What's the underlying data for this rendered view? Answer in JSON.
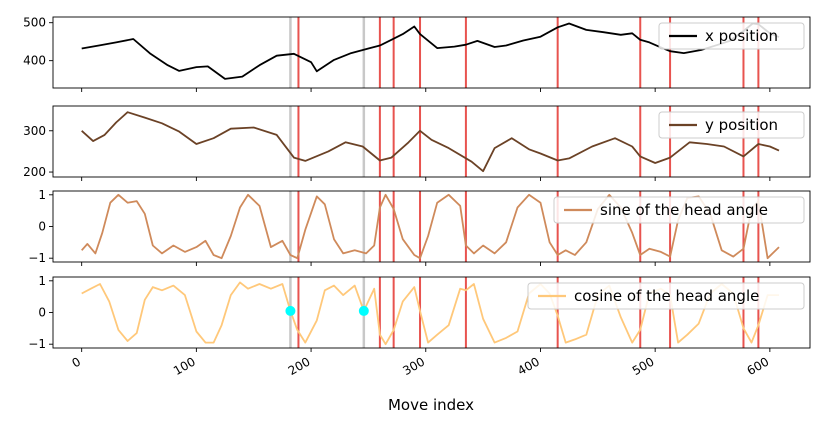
{
  "chart_data": {
    "type": "line",
    "xlabel": "Move index",
    "xlim": [
      -25,
      635
    ],
    "x_ticks": [
      0,
      100,
      200,
      300,
      400,
      500,
      600
    ],
    "x_tick_labels": [
      "0",
      "100",
      "200",
      "300",
      "400",
      "500",
      "600"
    ],
    "red_vlines": [
      189,
      260,
      272,
      295,
      335,
      415,
      487,
      513,
      577,
      590
    ],
    "gray_vlines": [
      182,
      246
    ],
    "markers": [
      {
        "panel": 3,
        "x": 182,
        "y": 0.05,
        "color": "#00ffff"
      },
      {
        "panel": 3,
        "x": 246,
        "y": 0.05,
        "color": "#00ffff"
      }
    ],
    "panels": [
      {
        "series_name": "x position",
        "color": "#000000",
        "ylim": [
          328,
          515
        ],
        "yticks": [
          400,
          500
        ],
        "ytick_labels": [
          "400",
          "500"
        ],
        "legend_loc": "upper right",
        "x": [
          0,
          15,
          30,
          45,
          60,
          75,
          85,
          100,
          110,
          125,
          140,
          155,
          170,
          185,
          200,
          205,
          220,
          235,
          250,
          260,
          270,
          280,
          290,
          295,
          310,
          325,
          335,
          345,
          360,
          370,
          385,
          400,
          415,
          425,
          440,
          455,
          470,
          480,
          487,
          495,
          505,
          513,
          525,
          540,
          555,
          565,
          577,
          585,
          590,
          600,
          608
        ],
        "y": [
          432,
          440,
          448,
          457,
          418,
          388,
          373,
          383,
          385,
          352,
          358,
          388,
          413,
          418,
          396,
          372,
          402,
          420,
          432,
          440,
          455,
          470,
          490,
          470,
          433,
          437,
          442,
          452,
          436,
          440,
          453,
          463,
          488,
          498,
          481,
          475,
          468,
          472,
          455,
          448,
          435,
          425,
          420,
          428,
          442,
          452,
          478,
          498,
          496,
          472,
          462
        ]
      },
      {
        "series_name": "y position",
        "color": "#6b4226",
        "ylim": [
          188,
          360
        ],
        "yticks": [
          200,
          300
        ],
        "ytick_labels": [
          "200",
          "300"
        ],
        "legend_loc": "upper right",
        "x": [
          0,
          10,
          20,
          30,
          40,
          55,
          70,
          85,
          100,
          115,
          130,
          150,
          170,
          185,
          195,
          215,
          230,
          245,
          260,
          270,
          285,
          295,
          305,
          320,
          340,
          350,
          360,
          375,
          390,
          400,
          415,
          425,
          445,
          465,
          480,
          487,
          500,
          513,
          530,
          545,
          560,
          577,
          590,
          600,
          608
        ],
        "y": [
          300,
          275,
          290,
          320,
          345,
          332,
          318,
          298,
          268,
          282,
          305,
          308,
          290,
          235,
          227,
          250,
          272,
          262,
          228,
          235,
          272,
          300,
          278,
          258,
          225,
          202,
          258,
          282,
          255,
          245,
          228,
          233,
          262,
          282,
          262,
          238,
          222,
          235,
          272,
          268,
          262,
          238,
          268,
          262,
          252
        ]
      },
      {
        "series_name": "sine of the head angle",
        "color": "#cf8a5b",
        "ylim": [
          -1.12,
          1.12
        ],
        "yticks": [
          -1,
          0,
          1
        ],
        "ytick_labels": [
          "−1",
          "0",
          "1"
        ],
        "legend_loc": "upper right",
        "x": [
          0,
          5,
          12,
          18,
          25,
          32,
          40,
          48,
          55,
          62,
          70,
          80,
          90,
          100,
          108,
          115,
          122,
          130,
          138,
          145,
          155,
          165,
          175,
          182,
          188,
          195,
          205,
          212,
          220,
          228,
          238,
          248,
          255,
          260,
          265,
          272,
          280,
          290,
          295,
          302,
          310,
          320,
          330,
          335,
          342,
          350,
          360,
          370,
          380,
          390,
          400,
          408,
          415,
          422,
          430,
          440,
          450,
          460,
          470,
          480,
          487,
          495,
          505,
          513,
          520,
          528,
          538,
          548,
          558,
          568,
          577,
          584,
          590,
          598,
          608
        ],
        "y": [
          -0.75,
          -0.55,
          -0.85,
          -0.2,
          0.75,
          1.0,
          0.75,
          0.8,
          0.4,
          -0.6,
          -0.85,
          -0.6,
          -0.8,
          -0.65,
          -0.45,
          -0.9,
          -1.0,
          -0.3,
          0.6,
          1.0,
          0.65,
          -0.65,
          -0.45,
          -0.9,
          -1.0,
          -0.1,
          0.95,
          0.7,
          -0.4,
          -0.85,
          -0.75,
          -0.85,
          -0.6,
          0.6,
          1.0,
          0.55,
          -0.4,
          -0.9,
          -1.0,
          -0.3,
          0.75,
          1.0,
          0.65,
          -0.6,
          -0.85,
          -0.6,
          -0.85,
          -0.5,
          0.6,
          1.0,
          0.75,
          -0.5,
          -0.9,
          -0.75,
          -0.9,
          -0.5,
          0.55,
          1.0,
          0.6,
          -0.2,
          -0.9,
          -0.7,
          -0.8,
          -0.95,
          0.2,
          0.9,
          0.95,
          0.4,
          -0.75,
          -0.95,
          -0.7,
          0.55,
          0.8,
          -1.0,
          -0.65
        ]
      },
      {
        "series_name": "cosine of the head angle",
        "color": "#ffc87a",
        "ylim": [
          -1.12,
          1.12
        ],
        "yticks": [
          -1,
          0,
          1
        ],
        "ytick_labels": [
          "−1",
          "0",
          "1"
        ],
        "legend_loc": "upper right",
        "x": [
          0,
          8,
          16,
          24,
          32,
          40,
          48,
          55,
          62,
          70,
          80,
          90,
          100,
          108,
          115,
          122,
          130,
          138,
          145,
          155,
          165,
          175,
          182,
          188,
          195,
          205,
          212,
          220,
          228,
          238,
          246,
          255,
          260,
          265,
          272,
          280,
          290,
          295,
          302,
          310,
          320,
          330,
          335,
          342,
          350,
          360,
          370,
          380,
          390,
          400,
          408,
          415,
          422,
          430,
          440,
          450,
          460,
          470,
          480,
          487,
          495,
          505,
          513,
          520,
          528,
          538,
          548,
          558,
          568,
          577,
          584,
          590,
          598,
          608
        ],
        "y": [
          0.6,
          0.75,
          0.9,
          0.35,
          -0.55,
          -0.9,
          -0.65,
          0.4,
          0.8,
          0.7,
          0.85,
          0.55,
          -0.6,
          -0.95,
          -0.95,
          -0.4,
          0.55,
          0.95,
          0.75,
          0.9,
          0.75,
          0.9,
          0.05,
          -0.55,
          -0.95,
          -0.25,
          0.7,
          0.85,
          0.55,
          0.85,
          0.05,
          0.75,
          -0.7,
          -1.0,
          -0.55,
          0.35,
          0.8,
          0.05,
          -0.95,
          -0.7,
          -0.4,
          0.75,
          0.7,
          0.9,
          -0.2,
          -0.95,
          -0.8,
          -0.6,
          0.6,
          0.9,
          0.6,
          -0.1,
          -0.95,
          -0.85,
          -0.7,
          0.55,
          0.85,
          -0.15,
          -0.95,
          -0.55,
          0.6,
          0.75,
          0.55,
          -0.95,
          -0.7,
          -0.35,
          0.6,
          0.9,
          0.6,
          -0.5,
          -0.95,
          -0.4,
          0.55,
          0.55
        ]
      }
    ]
  }
}
